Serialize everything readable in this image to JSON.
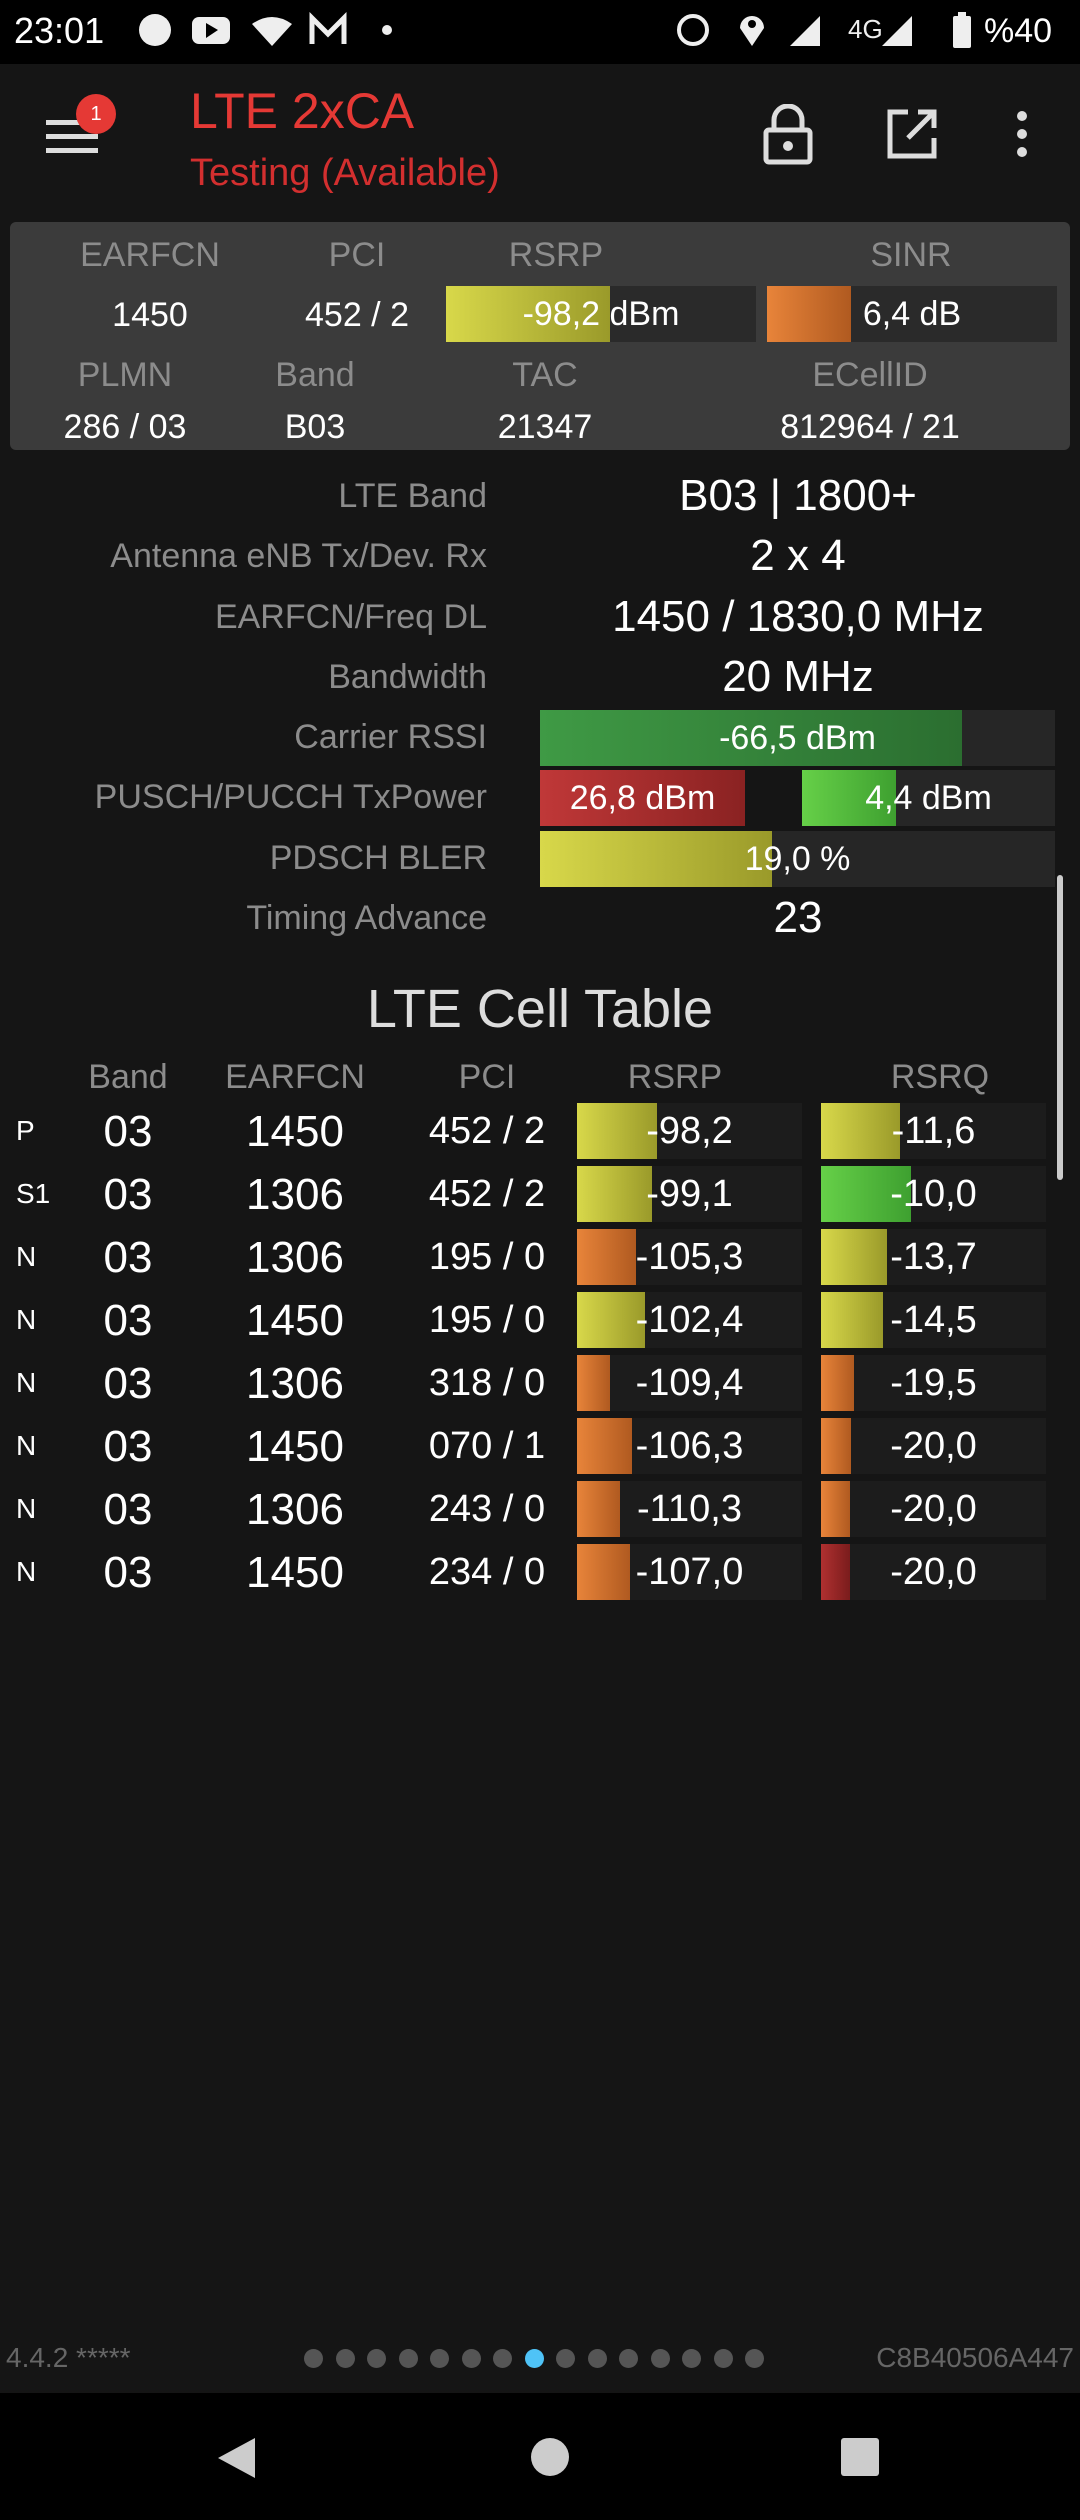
{
  "status_bar": {
    "time": "23:01",
    "network": "4G",
    "battery": "%40"
  },
  "app_bar": {
    "title": "LTE 2xCA",
    "subtitle": "Testing (Available)",
    "badge": "1"
  },
  "summary": {
    "headers": [
      "EARFCN",
      "PCI",
      "RSRP",
      "SINR"
    ],
    "values": [
      "1450",
      "452 / 2",
      "-98,2 dBm",
      "6,4 dB"
    ],
    "headers2": [
      "PLMN",
      "Band",
      "TAC",
      "ECellID"
    ],
    "values2": [
      "286 / 03",
      "B03",
      "21347",
      "812964 / 21"
    ]
  },
  "info": [
    {
      "label": "LTE Band",
      "value": "B03 | 1800+"
    },
    {
      "label": "Antenna eNB Tx/Dev. Rx",
      "value": "2 x 4"
    },
    {
      "label": "EARFCN/Freq DL",
      "value": "1450 / 1830,0 MHz"
    },
    {
      "label": "Bandwidth",
      "value": "20 MHz"
    },
    {
      "label": "Carrier RSSI",
      "value": "-66,5 dBm"
    },
    {
      "label": "PUSCH/PUCCH TxPower",
      "values": [
        "26,8 dBm",
        "4,4 dBm"
      ]
    },
    {
      "label": "PDSCH BLER",
      "value": "19,0 %"
    },
    {
      "label": "Timing Advance",
      "value": "23"
    }
  ],
  "cell_table": {
    "title": "LTE Cell Table",
    "columns": [
      "Band",
      "EARFCN",
      "PCI",
      "RSRP",
      "RSRQ"
    ],
    "rows": [
      [
        "P",
        "03",
        "1450",
        "452 / 2",
        "-98,2",
        "-11,6"
      ],
      [
        "S1",
        "03",
        "1306",
        "452 / 2",
        "-99,1",
        "-10,0"
      ],
      [
        "N",
        "03",
        "1306",
        "195 / 0",
        "-105,3",
        "-13,7"
      ],
      [
        "N",
        "03",
        "1450",
        "195 / 0",
        "-102,4",
        "-14,5"
      ],
      [
        "N",
        "03",
        "1306",
        "318 / 0",
        "-109,4",
        "-19,5"
      ],
      [
        "N",
        "03",
        "1450",
        "070 / 1",
        "-106,3",
        "-20,0"
      ],
      [
        "N",
        "03",
        "1306",
        "243 / 0",
        "-110,3",
        "-20,0"
      ],
      [
        "N",
        "03",
        "1450",
        "234 / 0",
        "-107,0",
        "-20,0"
      ]
    ]
  },
  "footer": {
    "version": "4.4.2 *****",
    "device_id": "C8B40506A447"
  }
}
